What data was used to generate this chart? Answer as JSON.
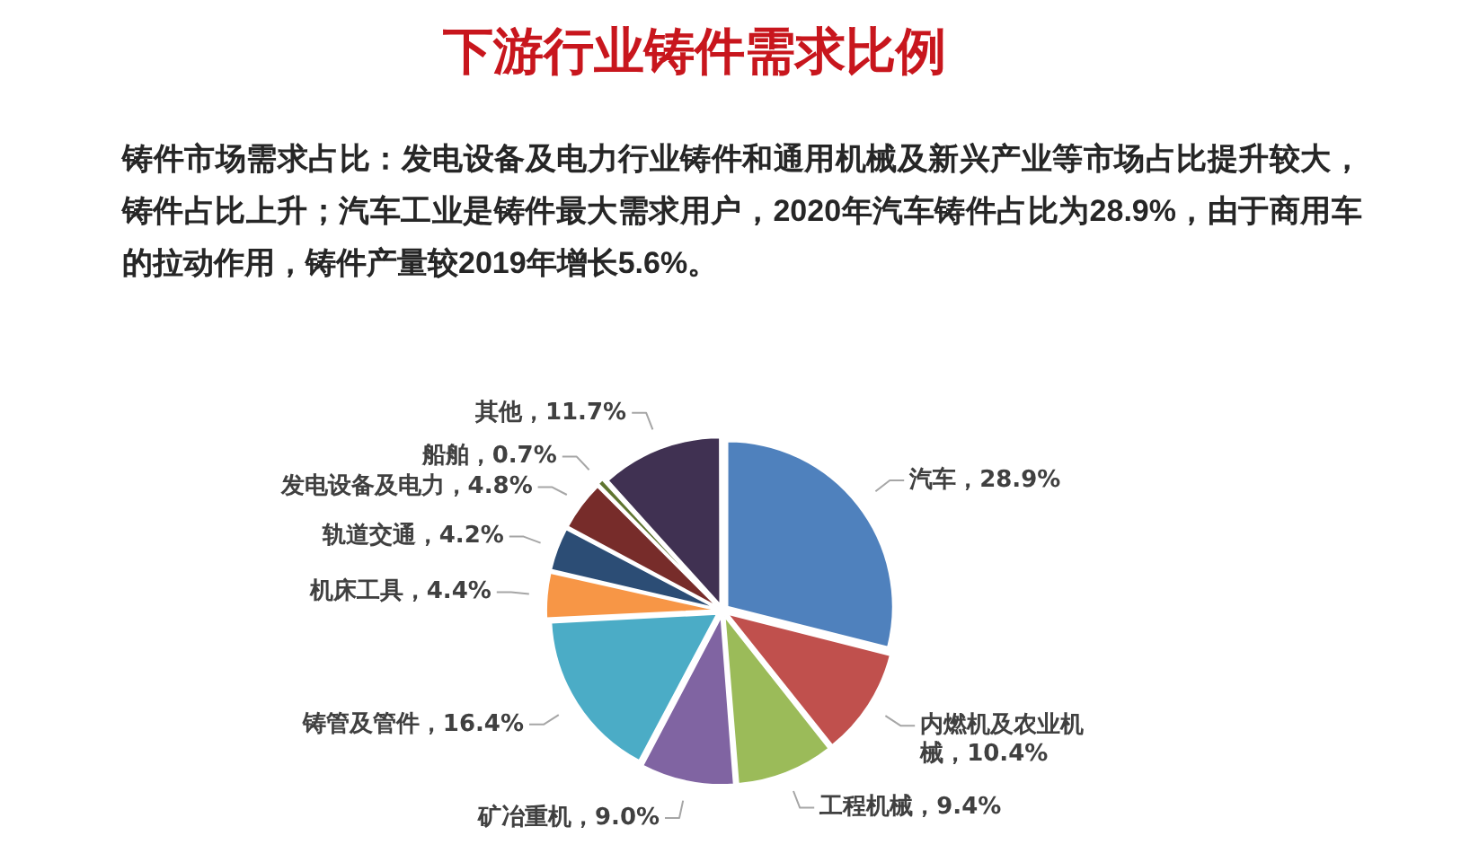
{
  "chart_data": {
    "type": "pie",
    "title": "下游行业铸件需求比例",
    "subtitle": "铸件市场需求占比：发电设备及电力行业铸件和通用机械及新兴产业等市场占比提升较大，铸件占比上升；汽车工业是铸件最大需求用户，2020年汽车铸件占比为28.9%，由于商用车的拉动作用，铸件产量较2019年增长5.6%。",
    "categories": [
      "汽车",
      "内燃机及农业机械",
      "工程机械",
      "矿冶重机",
      "铸管及管件",
      "机床工具",
      "轨道交通",
      "发电设备及电力",
      "船舶",
      "其他"
    ],
    "values": [
      28.9,
      10.4,
      9.4,
      9.0,
      16.4,
      4.4,
      4.2,
      4.8,
      0.7,
      11.7
    ],
    "value_labels": [
      "28.9%",
      "10.4%",
      "9.4%",
      "9.0%",
      "16.4%",
      "4.4%",
      "4.2%",
      "4.8%",
      "0.7%",
      "11.7%"
    ],
    "colors": [
      "#4f81bd",
      "#c0504d",
      "#9bbb59",
      "#8064a2",
      "#4bacc6",
      "#f79646",
      "#2c4d75",
      "#772c2a",
      "#5f7530",
      "#403152"
    ]
  }
}
